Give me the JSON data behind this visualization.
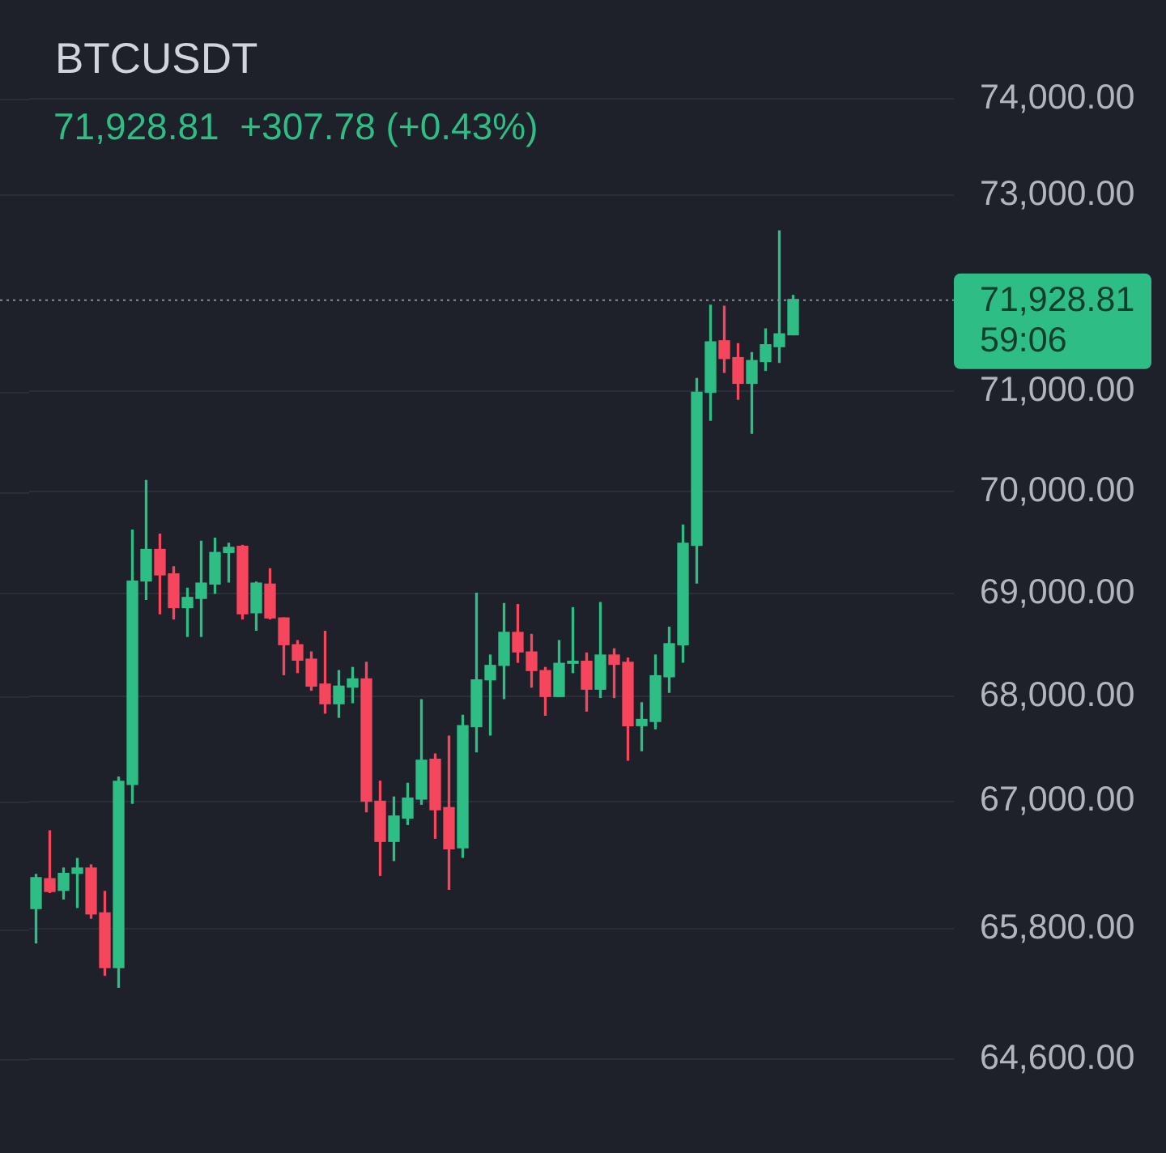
{
  "chart_data": {
    "type": "candlestick",
    "title": "BTCUSDT",
    "subtitle": "71,928.81  +307.78 (+0.43%)",
    "categories": [
      null,
      null,
      null,
      null,
      null,
      null,
      null,
      null,
      null,
      null,
      null,
      null,
      null,
      null,
      null,
      null,
      null,
      null,
      null,
      null,
      null,
      null,
      null,
      null,
      null,
      null,
      null,
      null,
      null,
      null,
      null,
      null,
      null,
      null,
      null,
      null,
      null,
      null,
      null,
      null,
      null,
      null,
      null,
      null,
      null,
      null,
      null,
      null,
      null,
      null,
      null,
      null,
      null,
      null,
      null,
      null
    ],
    "ohlc": [
      [
        65990,
        66310,
        65670,
        66280
      ],
      [
        66270,
        66720,
        66140,
        66150
      ],
      [
        66160,
        66370,
        66080,
        66320
      ],
      [
        66320,
        66460,
        66000,
        66370
      ],
      [
        66370,
        66400,
        65900,
        65940
      ],
      [
        65950,
        66150,
        65370,
        65440
      ],
      [
        65440,
        67230,
        65260,
        67190
      ],
      [
        67160,
        69620,
        66980,
        69120
      ],
      [
        69120,
        70110,
        68940,
        69430
      ],
      [
        69430,
        69580,
        68800,
        69180
      ],
      [
        69190,
        69260,
        68750,
        68860
      ],
      [
        68860,
        69050,
        68580,
        68960
      ],
      [
        68950,
        69510,
        68580,
        69100
      ],
      [
        69090,
        69540,
        69000,
        69400
      ],
      [
        69400,
        69490,
        69110,
        69450
      ],
      [
        69460,
        69470,
        68750,
        68800
      ],
      [
        68810,
        69110,
        68640,
        69100
      ],
      [
        69090,
        69240,
        68750,
        68760
      ],
      [
        68760,
        68760,
        68210,
        68500
      ],
      [
        68500,
        68540,
        68230,
        68350
      ],
      [
        68360,
        68430,
        68060,
        68100
      ],
      [
        68120,
        68630,
        67840,
        67930
      ],
      [
        67930,
        68250,
        67800,
        68100
      ],
      [
        68090,
        68280,
        67940,
        68170
      ],
      [
        68170,
        68330,
        66900,
        67000
      ],
      [
        67000,
        67190,
        66300,
        66620
      ],
      [
        66620,
        67040,
        66440,
        66860
      ],
      [
        66840,
        67170,
        66780,
        67030
      ],
      [
        67020,
        67970,
        66970,
        67390
      ],
      [
        67400,
        67450,
        66650,
        66920
      ],
      [
        66940,
        67620,
        66170,
        66550
      ],
      [
        66560,
        67820,
        66470,
        67720
      ],
      [
        67710,
        69000,
        67470,
        68160
      ],
      [
        68160,
        68400,
        67630,
        68300
      ],
      [
        68300,
        68900,
        67980,
        68620
      ],
      [
        68620,
        68890,
        68330,
        68430
      ],
      [
        68430,
        68600,
        68090,
        68250
      ],
      [
        68250,
        68280,
        67820,
        68000
      ],
      [
        68000,
        68540,
        68000,
        68320
      ],
      [
        68320,
        68860,
        68230,
        68340
      ],
      [
        68340,
        68420,
        67860,
        68070
      ],
      [
        68070,
        68910,
        67990,
        68400
      ],
      [
        68400,
        68460,
        67990,
        68310
      ],
      [
        68330,
        68370,
        67390,
        67720
      ],
      [
        67720,
        67940,
        67480,
        67780
      ],
      [
        67760,
        68400,
        67690,
        68200
      ],
      [
        68190,
        68670,
        68040,
        68510
      ],
      [
        68500,
        69670,
        68330,
        69490
      ],
      [
        69470,
        71130,
        69100,
        70990
      ],
      [
        70990,
        71870,
        70710,
        71500
      ],
      [
        71510,
        71860,
        71190,
        71330
      ],
      [
        71340,
        71480,
        70920,
        71080
      ],
      [
        71080,
        71390,
        70580,
        71310
      ],
      [
        71300,
        71630,
        71210,
        71470
      ],
      [
        71450,
        72630,
        71290,
        71580
      ],
      [
        71570,
        71970,
        71570,
        71928.81
      ]
    ],
    "colors": [
      "#2ebd85",
      "#f6465d",
      "#2ebd85",
      "#2ebd85",
      "#f6465d",
      "#f6465d",
      "#2ebd85",
      "#2ebd85",
      "#2ebd85",
      "#f6465d",
      "#f6465d",
      "#2ebd85",
      "#2ebd85",
      "#2ebd85",
      "#2ebd85",
      "#f6465d",
      "#2ebd85",
      "#f6465d",
      "#f6465d",
      "#f6465d",
      "#f6465d",
      "#f6465d",
      "#2ebd85",
      "#2ebd85",
      "#f6465d",
      "#f6465d",
      "#2ebd85",
      "#2ebd85",
      "#2ebd85",
      "#f6465d",
      "#f6465d",
      "#2ebd85",
      "#2ebd85",
      "#2ebd85",
      "#2ebd85",
      "#f6465d",
      "#f6465d",
      "#f6465d",
      "#2ebd85",
      "#2ebd85",
      "#f6465d",
      "#2ebd85",
      "#f6465d",
      "#f6465d",
      "#2ebd85",
      "#2ebd85",
      "#2ebd85",
      "#2ebd85",
      "#2ebd85",
      "#2ebd85",
      "#f6465d",
      "#f6465d",
      "#2ebd85",
      "#2ebd85",
      "#2ebd85",
      "#2ebd85"
    ],
    "log": true,
    "ylim": [
      64600,
      74000
    ],
    "yticks": [
      {
        "value": 64600,
        "label": "64,600.00"
      },
      {
        "value": 65800,
        "label": "65,800.00"
      },
      {
        "value": 67000,
        "label": "67,000.00"
      },
      {
        "value": 68000,
        "label": "68,000.00"
      },
      {
        "value": 69000,
        "label": "69,000.00"
      },
      {
        "value": 70000,
        "label": "70,000.00"
      },
      {
        "value": 71000,
        "label": "71,000.00"
      },
      {
        "value": 73000,
        "label": "73,000.00"
      },
      {
        "value": 74000,
        "label": "74,000.00"
      }
    ],
    "grid": "y",
    "tick_labels": "y",
    "ref_lines": [
      {
        "axis": "y",
        "value": 71928.81,
        "label": "71,928.81\n59:06",
        "color": "#8c8f99",
        "line_style": "dotted"
      }
    ]
  }
}
